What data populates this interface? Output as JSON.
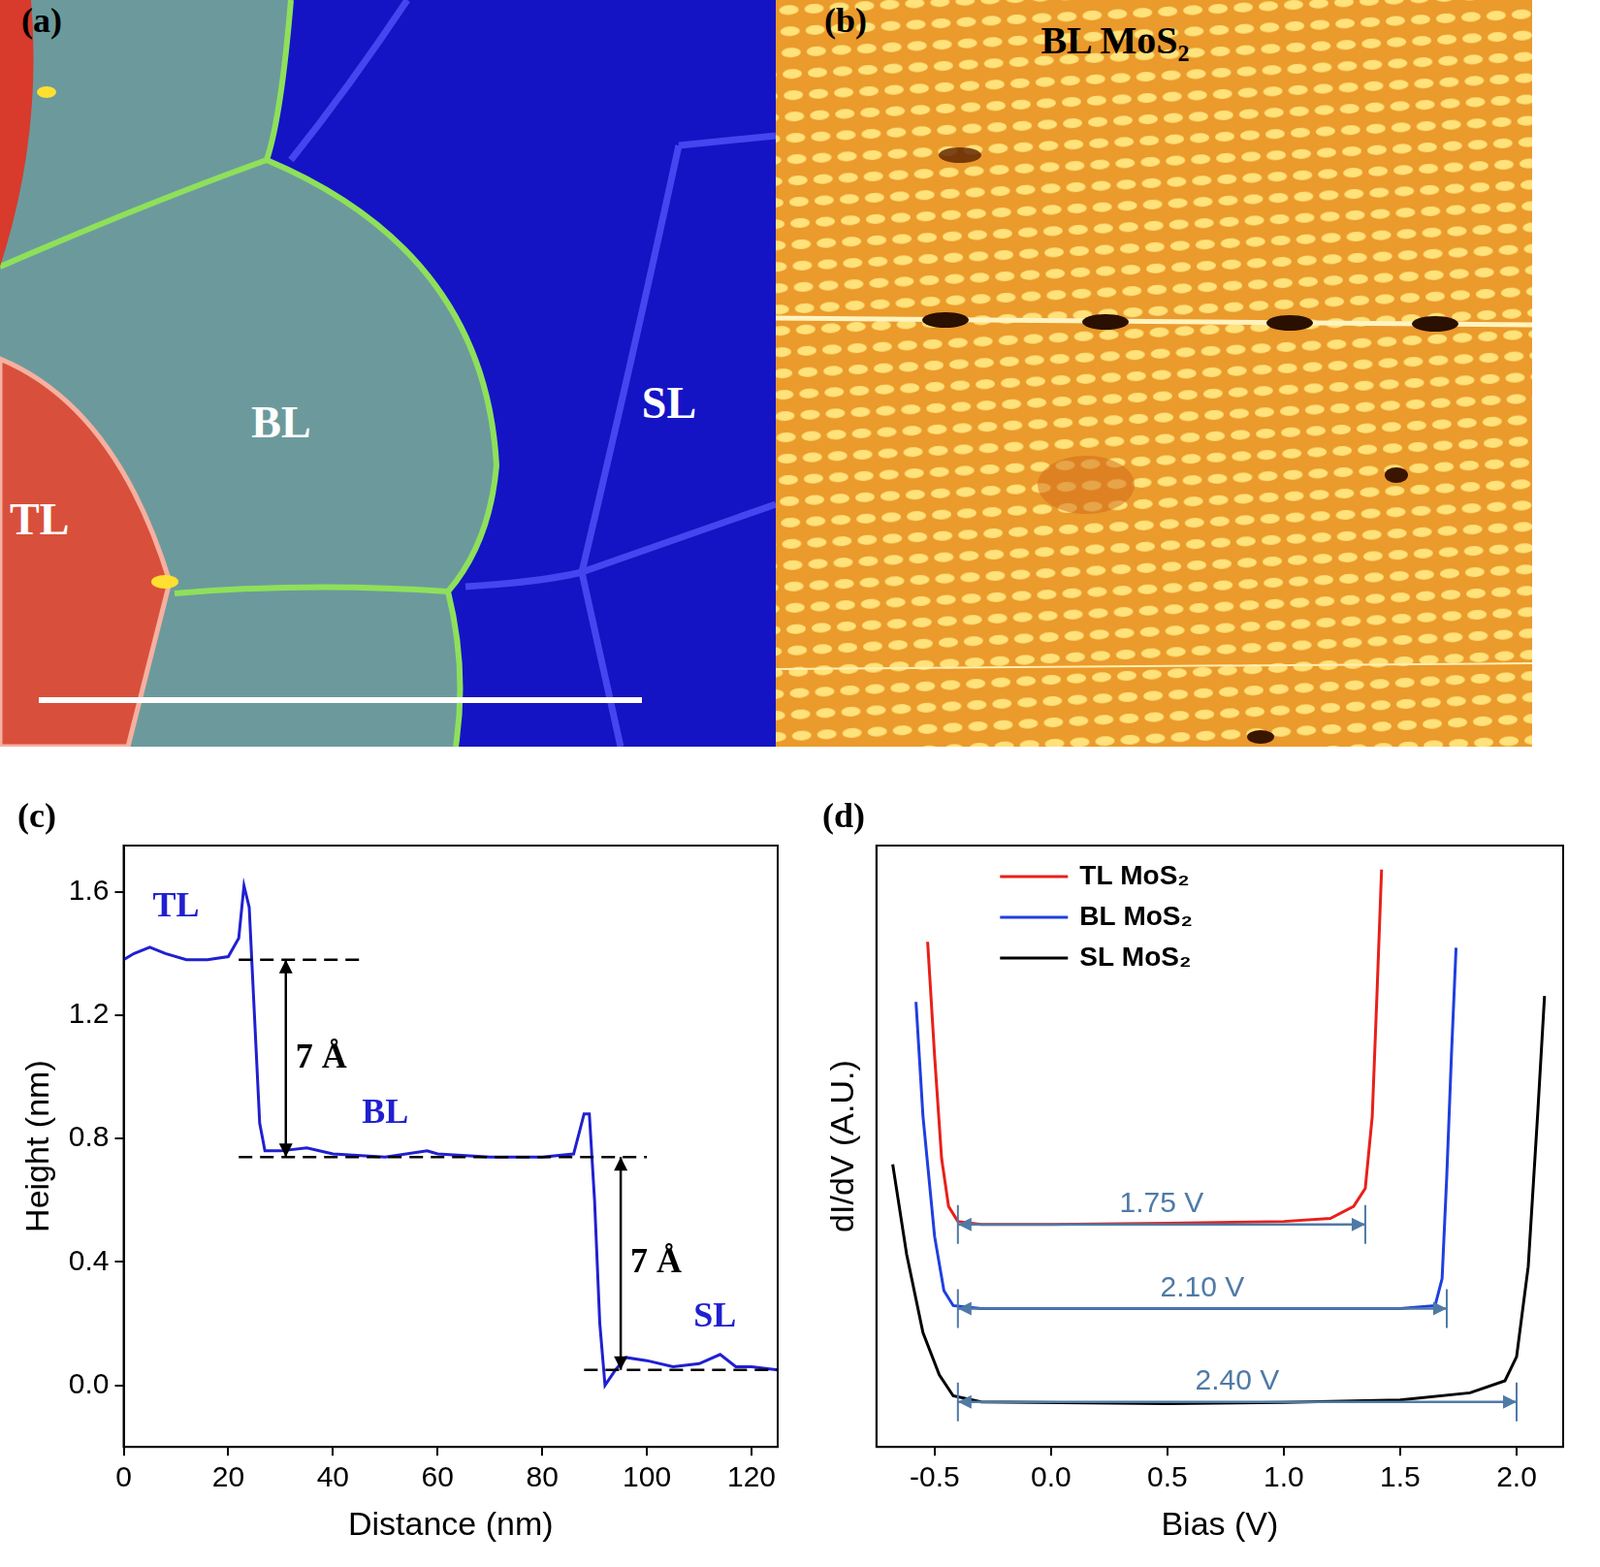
{
  "images": [
    {
      "panel_label": "(a)",
      "labels": [
        "TL",
        "BL",
        "SL"
      ]
    },
    {
      "panel_label": "(b)",
      "title": "BL MoS₂"
    }
  ],
  "chart_data": [
    {
      "panel_label": "(c)",
      "type": "line",
      "x_label": "Distance (nm)",
      "y_label": "Height (nm)",
      "xlim": [
        0,
        125
      ],
      "xticks": [
        0,
        20,
        40,
        60,
        80,
        100,
        120
      ],
      "ylim": [
        -0.2,
        1.75
      ],
      "yticks": [
        {
          "value": 0,
          "label": "0.0"
        },
        0.4,
        0.8,
        1.2,
        1.6
      ],
      "grid": false,
      "color": "#2020d0",
      "x": [
        0,
        2,
        5,
        8,
        12,
        16,
        20,
        22,
        23,
        24,
        25,
        26,
        27,
        30,
        35,
        40,
        50,
        58,
        60,
        70,
        80,
        86,
        88,
        89,
        90,
        91,
        92,
        94,
        96,
        100,
        105,
        110,
        114,
        117,
        120,
        125
      ],
      "values": [
        1.38,
        1.4,
        1.42,
        1.4,
        1.38,
        1.38,
        1.39,
        1.45,
        1.62,
        1.55,
        1.2,
        0.85,
        0.76,
        0.76,
        0.77,
        0.75,
        0.74,
        0.76,
        0.75,
        0.74,
        0.74,
        0.75,
        0.88,
        0.88,
        0.6,
        0.2,
        0.0,
        0.05,
        0.09,
        0.08,
        0.06,
        0.07,
        0.1,
        0.06,
        0.06,
        0.05
      ],
      "region_labels": [
        {
          "text": "TL",
          "x": 10,
          "y": 1.55
        },
        {
          "text": "BL",
          "x": 50,
          "y": 0.88
        },
        {
          "text": "SL",
          "x": 113,
          "y": 0.22
        }
      ],
      "steps": [
        {
          "text": "7 Å",
          "x": 31,
          "y": [
            0.74,
            1.38
          ]
        },
        {
          "text": "7 Å",
          "x": 95,
          "y": [
            0.05,
            0.74
          ]
        }
      ],
      "levels": [
        {
          "y": 1.38,
          "x": [
            22,
            45
          ]
        },
        {
          "y": 0.74,
          "x": [
            22,
            100
          ]
        },
        {
          "y": 0.05,
          "x": [
            88,
            125
          ]
        }
      ]
    },
    {
      "panel_label": "(d)",
      "type": "line",
      "x_label": "Bias (V)",
      "y_label": "dI/dV (A.U.)",
      "xlim": [
        -0.75,
        2.2
      ],
      "xticks": [
        -0.5,
        {
          "value": 0,
          "label": "0.0"
        },
        0.5,
        {
          "value": 1,
          "label": "1.0"
        },
        1.5,
        {
          "value": 2,
          "label": "2.0"
        }
      ],
      "ylim": [
        0,
        10
      ],
      "tick_labels": "x",
      "grid": false,
      "legend": "upper left",
      "series": [
        {
          "name": "TL MoS₂",
          "color": "#e8201a",
          "x": [
            -0.53,
            -0.5,
            -0.47,
            -0.44,
            -0.4,
            -0.3,
            0,
            0.5,
            1.0,
            1.2,
            1.3,
            1.35,
            1.38,
            1.4,
            1.42
          ],
          "values": [
            8.4,
            6.5,
            4.8,
            4.0,
            3.75,
            3.7,
            3.7,
            3.72,
            3.75,
            3.8,
            4.0,
            4.3,
            5.5,
            7.5,
            9.6
          ]
        },
        {
          "name": "BL MoS₂",
          "color": "#1f3fe0",
          "x": [
            -0.58,
            -0.55,
            -0.5,
            -0.46,
            -0.42,
            -0.3,
            0.5,
            1.0,
            1.5,
            1.65,
            1.68,
            1.7,
            1.72,
            1.74
          ],
          "values": [
            7.4,
            5.5,
            3.5,
            2.6,
            2.35,
            2.3,
            2.3,
            2.3,
            2.3,
            2.35,
            2.8,
            4.5,
            6.5,
            8.3
          ]
        },
        {
          "name": "SL MoS₂",
          "color": "#000000",
          "x": [
            -0.68,
            -0.62,
            -0.55,
            -0.48,
            -0.42,
            -0.3,
            0.5,
            1.0,
            1.5,
            1.8,
            1.95,
            2.0,
            2.05,
            2.09,
            2.12
          ],
          "values": [
            4.7,
            3.2,
            1.9,
            1.2,
            0.85,
            0.75,
            0.72,
            0.74,
            0.78,
            0.9,
            1.1,
            1.5,
            3.0,
            5.5,
            7.5
          ]
        }
      ],
      "gaps": [
        {
          "text": "1.75 V",
          "x": [
            -0.4,
            1.35
          ],
          "y": 3.7
        },
        {
          "text": "2.10 V",
          "x": [
            -0.4,
            1.7
          ],
          "y": 2.3
        },
        {
          "text": "2.40 V",
          "x": [
            -0.4,
            2.0
          ],
          "y": 0.75
        }
      ]
    }
  ]
}
